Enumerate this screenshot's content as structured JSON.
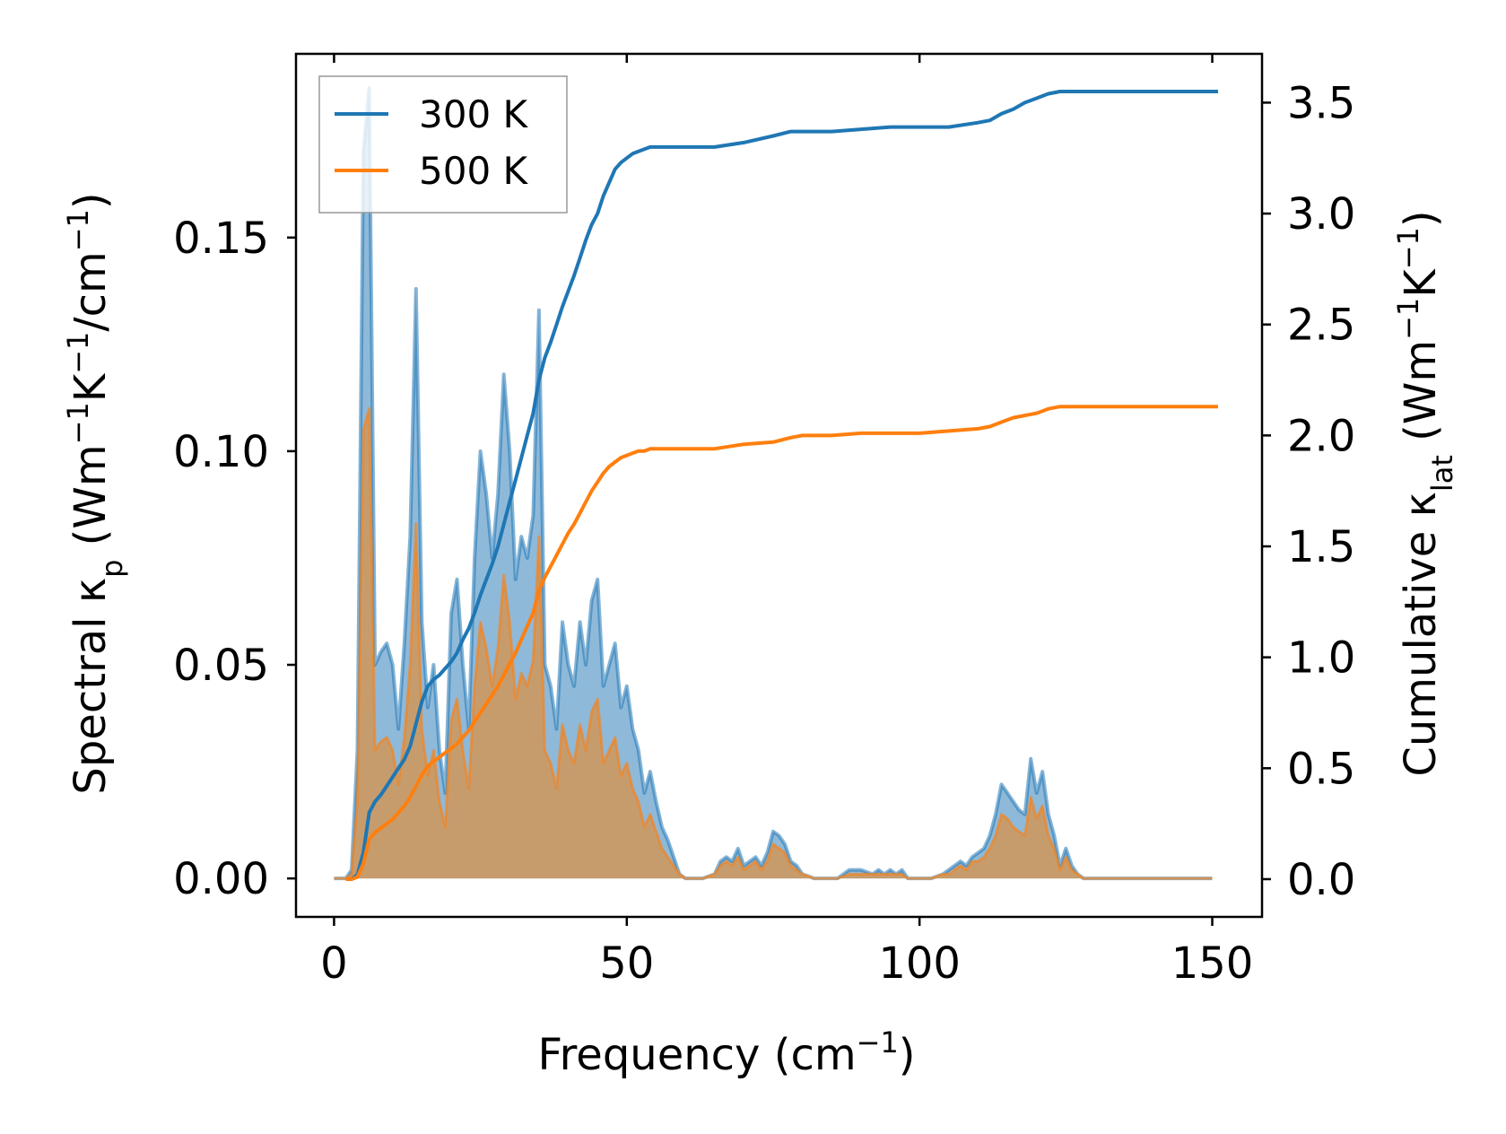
{
  "chart_data": {
    "type": "area",
    "xlabel": {
      "base": "Frequency (cm",
      "sup": "−1",
      "end": ")"
    },
    "ylabel_left": {
      "base": "Spectral κ",
      "sub": "p",
      "mid1": " (Wm",
      "sup1": "−1",
      "mid2": "K",
      "sup2": "−1",
      "mid3": "/cm",
      "sup3": "−1",
      "end": ")"
    },
    "ylabel_right": {
      "base": "Cumulative κ",
      "sub": "lat",
      "mid1": " (Wm",
      "sup1": "−1",
      "mid2": "K",
      "sup2": "−1",
      "end": ")"
    },
    "xlim": [
      -6.5,
      158.5
    ],
    "ylim_left": [
      -0.009,
      0.193
    ],
    "ylim_right": [
      -0.17,
      3.72
    ],
    "xticks": [
      0,
      50,
      100,
      150
    ],
    "xtick_labels": [
      "0",
      "50",
      "100",
      "150"
    ],
    "yticks_left": [
      0.0,
      0.05,
      0.1,
      0.15
    ],
    "ytick_labels_left": [
      "0.00",
      "0.05",
      "0.10",
      "0.15"
    ],
    "yticks_right": [
      0.0,
      0.5,
      1.0,
      1.5,
      2.0,
      2.5,
      3.0,
      3.5
    ],
    "ytick_labels_right": [
      "0.0",
      "0.5",
      "1.0",
      "1.5",
      "2.0",
      "2.5",
      "3.0",
      "3.5"
    ],
    "legend_position": "top-left",
    "colors": {
      "300K": "#1f77b4",
      "500K": "#ff7f0e",
      "fill_300K": "#8fb9d9",
      "fill_500K": "#c69c6d"
    },
    "series": [
      {
        "name": "300 K",
        "color": "#1f77b4",
        "spectral": {
          "x": [
            0,
            1,
            2,
            3,
            4,
            5,
            6,
            7,
            8,
            9,
            10,
            11,
            12,
            13,
            14,
            15,
            16,
            17,
            18,
            19,
            20,
            21,
            22,
            23,
            24,
            25,
            26,
            27,
            28,
            29,
            30,
            31,
            32,
            33,
            34,
            35,
            36,
            37,
            38,
            39,
            40,
            41,
            42,
            43,
            44,
            45,
            46,
            47,
            48,
            49,
            50,
            51,
            52,
            53,
            54,
            55,
            56,
            57,
            58,
            59,
            60,
            63,
            65,
            66,
            67,
            68,
            69,
            70,
            71,
            72,
            73,
            74,
            75,
            76,
            77,
            78,
            79,
            80,
            82,
            84,
            86,
            88,
            90,
            92,
            93,
            94,
            95,
            96,
            97,
            98,
            100,
            102,
            104,
            105,
            106,
            107,
            108,
            109,
            110,
            111,
            112,
            113,
            114,
            115,
            116,
            117,
            118,
            119,
            120,
            121,
            122,
            123,
            124,
            125,
            126,
            127,
            128,
            130,
            150
          ],
          "y": [
            0,
            0,
            0,
            0.002,
            0.03,
            0.17,
            0.185,
            0.05,
            0.053,
            0.055,
            0.05,
            0.035,
            0.055,
            0.08,
            0.138,
            0.06,
            0.04,
            0.05,
            0.03,
            0.02,
            0.062,
            0.07,
            0.05,
            0.035,
            0.075,
            0.1,
            0.09,
            0.075,
            0.09,
            0.118,
            0.1,
            0.07,
            0.08,
            0.075,
            0.085,
            0.133,
            0.05,
            0.045,
            0.035,
            0.06,
            0.05,
            0.045,
            0.06,
            0.05,
            0.065,
            0.07,
            0.045,
            0.05,
            0.055,
            0.04,
            0.045,
            0.035,
            0.03,
            0.02,
            0.025,
            0.018,
            0.012,
            0.009,
            0.005,
            0.001,
            0,
            0,
            0.001,
            0.004,
            0.005,
            0.004,
            0.007,
            0.003,
            0.004,
            0.005,
            0.003,
            0.006,
            0.011,
            0.01,
            0.008,
            0.004,
            0.003,
            0.001,
            0,
            0,
            0,
            0.002,
            0.002,
            0.001,
            0.002,
            0.001,
            0.002,
            0.001,
            0.002,
            0,
            0,
            0,
            0.001,
            0.002,
            0.003,
            0.004,
            0.003,
            0.005,
            0.006,
            0.007,
            0.01,
            0.015,
            0.022,
            0.02,
            0.018,
            0.016,
            0.015,
            0.028,
            0.02,
            0.025,
            0.015,
            0.01,
            0.003,
            0.007,
            0.003,
            0.001,
            0,
            0,
            0
          ]
        },
        "cumulative": {
          "x": [
            2,
            3,
            4,
            5,
            6,
            7,
            8,
            9,
            10,
            11,
            12,
            13,
            14,
            15,
            16,
            17,
            18,
            19,
            20,
            21,
            22,
            23,
            24,
            25,
            26,
            27,
            28,
            29,
            30,
            31,
            32,
            33,
            34,
            35,
            36,
            37,
            38,
            39,
            40,
            41,
            42,
            43,
            44,
            45,
            46,
            47,
            48,
            49,
            50,
            51,
            52,
            53,
            54,
            55,
            56,
            57,
            58,
            60,
            65,
            70,
            75,
            78,
            80,
            85,
            90,
            95,
            100,
            105,
            110,
            112,
            114,
            116,
            118,
            120,
            122,
            124,
            126,
            130,
            151
          ],
          "y": [
            0,
            0,
            0.02,
            0.12,
            0.3,
            0.35,
            0.38,
            0.42,
            0.46,
            0.5,
            0.54,
            0.6,
            0.7,
            0.8,
            0.87,
            0.9,
            0.92,
            0.95,
            0.98,
            1.02,
            1.08,
            1.13,
            1.2,
            1.28,
            1.35,
            1.42,
            1.5,
            1.6,
            1.7,
            1.8,
            1.9,
            2.0,
            2.1,
            2.25,
            2.35,
            2.42,
            2.5,
            2.58,
            2.65,
            2.72,
            2.8,
            2.88,
            2.95,
            3.0,
            3.08,
            3.14,
            3.2,
            3.23,
            3.25,
            3.27,
            3.28,
            3.29,
            3.3,
            3.3,
            3.3,
            3.3,
            3.3,
            3.3,
            3.3,
            3.32,
            3.35,
            3.37,
            3.37,
            3.37,
            3.38,
            3.39,
            3.39,
            3.39,
            3.41,
            3.42,
            3.45,
            3.47,
            3.5,
            3.52,
            3.54,
            3.55,
            3.55,
            3.55,
            3.55
          ]
        }
      },
      {
        "name": "500 K",
        "color": "#ff7f0e",
        "spectral": {
          "x": [
            0,
            1,
            2,
            3,
            4,
            5,
            6,
            7,
            8,
            9,
            10,
            11,
            12,
            13,
            14,
            15,
            16,
            17,
            18,
            19,
            20,
            21,
            22,
            23,
            24,
            25,
            26,
            27,
            28,
            29,
            30,
            31,
            32,
            33,
            34,
            35,
            36,
            37,
            38,
            39,
            40,
            41,
            42,
            43,
            44,
            45,
            46,
            47,
            48,
            49,
            50,
            51,
            52,
            53,
            54,
            55,
            56,
            57,
            58,
            59,
            60,
            63,
            65,
            66,
            67,
            68,
            69,
            70,
            71,
            72,
            73,
            74,
            75,
            76,
            77,
            78,
            79,
            80,
            82,
            84,
            86,
            88,
            90,
            92,
            93,
            94,
            95,
            96,
            97,
            98,
            100,
            102,
            104,
            105,
            106,
            107,
            108,
            109,
            110,
            111,
            112,
            113,
            114,
            115,
            116,
            117,
            118,
            119,
            120,
            121,
            122,
            123,
            124,
            125,
            126,
            127,
            128,
            130,
            150
          ],
          "y": [
            0,
            0,
            0,
            0.001,
            0.018,
            0.105,
            0.11,
            0.03,
            0.032,
            0.033,
            0.03,
            0.022,
            0.033,
            0.05,
            0.083,
            0.035,
            0.024,
            0.03,
            0.018,
            0.012,
            0.037,
            0.042,
            0.03,
            0.021,
            0.045,
            0.06,
            0.054,
            0.045,
            0.054,
            0.071,
            0.06,
            0.042,
            0.048,
            0.045,
            0.051,
            0.08,
            0.03,
            0.027,
            0.021,
            0.036,
            0.03,
            0.027,
            0.036,
            0.03,
            0.039,
            0.042,
            0.027,
            0.03,
            0.033,
            0.024,
            0.027,
            0.021,
            0.018,
            0.012,
            0.015,
            0.011,
            0.007,
            0.005,
            0.003,
            0.001,
            0,
            0,
            0.001,
            0.003,
            0.004,
            0.003,
            0.005,
            0.002,
            0.003,
            0.004,
            0.002,
            0.004,
            0.008,
            0.007,
            0.006,
            0.003,
            0.002,
            0.001,
            0,
            0,
            0,
            0.001,
            0.001,
            0.001,
            0.001,
            0.001,
            0.001,
            0.001,
            0.001,
            0,
            0,
            0,
            0.001,
            0.001,
            0.002,
            0.003,
            0.002,
            0.004,
            0.004,
            0.005,
            0.007,
            0.01,
            0.015,
            0.014,
            0.012,
            0.011,
            0.01,
            0.019,
            0.014,
            0.017,
            0.01,
            0.007,
            0.002,
            0.005,
            0.002,
            0.001,
            0,
            0,
            0
          ]
        },
        "cumulative": {
          "x": [
            2,
            3,
            4,
            5,
            6,
            7,
            8,
            9,
            10,
            11,
            12,
            13,
            14,
            15,
            16,
            17,
            18,
            19,
            20,
            21,
            22,
            23,
            24,
            25,
            26,
            27,
            28,
            29,
            30,
            31,
            32,
            33,
            34,
            35,
            36,
            37,
            38,
            39,
            40,
            41,
            42,
            43,
            44,
            45,
            46,
            47,
            48,
            49,
            50,
            51,
            52,
            53,
            54,
            55,
            56,
            57,
            58,
            60,
            65,
            70,
            75,
            78,
            80,
            85,
            90,
            95,
            100,
            105,
            110,
            112,
            114,
            116,
            118,
            120,
            122,
            124,
            126,
            130,
            151
          ],
          "y": [
            0,
            0,
            0.01,
            0.07,
            0.18,
            0.21,
            0.23,
            0.25,
            0.27,
            0.3,
            0.33,
            0.37,
            0.42,
            0.47,
            0.51,
            0.53,
            0.55,
            0.57,
            0.59,
            0.61,
            0.64,
            0.67,
            0.71,
            0.75,
            0.79,
            0.83,
            0.87,
            0.92,
            0.97,
            1.02,
            1.08,
            1.14,
            1.2,
            1.3,
            1.36,
            1.41,
            1.46,
            1.51,
            1.56,
            1.6,
            1.65,
            1.7,
            1.75,
            1.79,
            1.83,
            1.86,
            1.88,
            1.9,
            1.91,
            1.92,
            1.93,
            1.93,
            1.94,
            1.94,
            1.94,
            1.94,
            1.94,
            1.94,
            1.94,
            1.96,
            1.97,
            1.99,
            2.0,
            2.0,
            2.01,
            2.01,
            2.01,
            2.02,
            2.03,
            2.04,
            2.06,
            2.08,
            2.09,
            2.1,
            2.12,
            2.13,
            2.13,
            2.13,
            2.13
          ]
        }
      }
    ]
  }
}
